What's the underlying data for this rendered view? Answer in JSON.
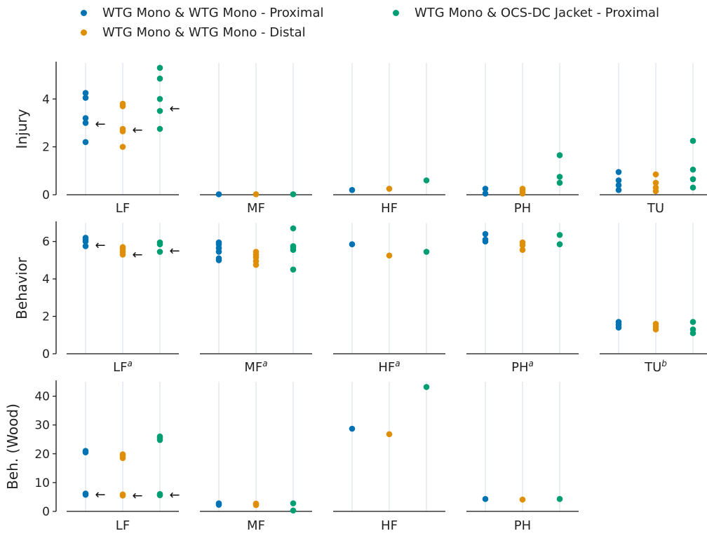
{
  "legend": [
    {
      "label": "WTG Mono & WTG Mono - Proximal",
      "color": "#0173b2"
    },
    {
      "label": "WTG Mono & WTG Mono - Distal",
      "color": "#de8f05"
    },
    {
      "label": "WTG Mono & OCS-DC Jacket - Proximal",
      "color": "#029e73"
    }
  ],
  "chart_data": {
    "type": "scatter",
    "layout": "grid of strip plots, 3 rows x 5 columns",
    "grid": false,
    "legend_position": "top",
    "series_colors": [
      "#0173b2",
      "#de8f05",
      "#029e73"
    ],
    "rows": [
      {
        "ylabel": "Injury",
        "ylim": [
          0,
          5.5
        ],
        "yticks": [
          "0",
          "2",
          "4"
        ],
        "ytick_values": [
          0,
          2,
          4
        ],
        "panels": [
          {
            "label": "LF",
            "sup": "",
            "series": [
              [
                2.2,
                3.0,
                3.2,
                4.05,
                4.25
              ],
              [
                2.0,
                2.65,
                2.75,
                3.7,
                3.8
              ],
              [
                2.75,
                3.5,
                4.0,
                4.85,
                5.3
              ]
            ],
            "arrows": [
              2.95,
              2.7,
              3.6
            ]
          },
          {
            "label": "MF",
            "sup": "",
            "series": [
              [
                0.02
              ],
              [
                0.02
              ],
              [
                0.02
              ]
            ],
            "arrows": []
          },
          {
            "label": "HF",
            "sup": "",
            "series": [
              [
                0.2
              ],
              [
                0.25
              ],
              [
                0.6
              ]
            ],
            "arrows": []
          },
          {
            "label": "PH",
            "sup": "",
            "series": [
              [
                0.05,
                0.25
              ],
              [
                0.05,
                0.15,
                0.25
              ],
              [
                0.5,
                0.75,
                1.65
              ]
            ],
            "arrows": []
          },
          {
            "label": "TU",
            "sup": "",
            "series": [
              [
                0.2,
                0.4,
                0.6,
                0.95
              ],
              [
                0.15,
                0.3,
                0.5,
                0.85
              ],
              [
                0.3,
                0.65,
                1.05,
                2.25
              ]
            ],
            "arrows": []
          }
        ]
      },
      {
        "ylabel": "Behavior",
        "ylim": [
          0,
          7
        ],
        "yticks": [
          "0",
          "2",
          "4",
          "6"
        ],
        "ytick_values": [
          0,
          2,
          4,
          6
        ],
        "panels": [
          {
            "label": "LF",
            "sup": "a",
            "series": [
              [
                5.75,
                6.0,
                6.1,
                6.2
              ],
              [
                5.3,
                5.45,
                5.6,
                5.7
              ],
              [
                5.45,
                5.85,
                5.95
              ]
            ],
            "arrows": [
              5.8,
              5.3,
              5.5
            ]
          },
          {
            "label": "MF",
            "sup": "a",
            "series": [
              [
                5.0,
                5.1,
                5.45,
                5.65,
                5.85,
                5.95
              ],
              [
                4.75,
                4.95,
                5.15,
                5.3,
                5.45
              ],
              [
                4.5,
                5.55,
                5.65,
                5.75,
                6.7
              ]
            ],
            "arrows": []
          },
          {
            "label": "HF",
            "sup": "a",
            "series": [
              [
                5.85
              ],
              [
                5.25
              ],
              [
                5.45
              ]
            ],
            "arrows": []
          },
          {
            "label": "PH",
            "sup": "a",
            "series": [
              [
                6.0,
                6.1,
                6.4
              ],
              [
                5.55,
                5.8,
                5.95
              ],
              [
                5.85,
                6.35
              ]
            ],
            "arrows": []
          },
          {
            "label": "TU",
            "sup": "b",
            "series": [
              [
                1.4,
                1.55,
                1.7
              ],
              [
                1.3,
                1.45,
                1.6
              ],
              [
                1.1,
                1.3,
                1.7
              ]
            ],
            "arrows": []
          }
        ]
      },
      {
        "ylabel": "Beh. (Wood)",
        "ylim": [
          0,
          45
        ],
        "yticks": [
          "0",
          "10",
          "20",
          "30",
          "40"
        ],
        "ytick_values": [
          0,
          10,
          20,
          30,
          40
        ],
        "panels": [
          {
            "label": "LF",
            "sup": "",
            "series": [
              [
                5.8,
                6.2,
                20.5,
                21.0
              ],
              [
                5.5,
                5.9,
                18.5,
                19.3,
                19.8
              ],
              [
                5.6,
                6.0,
                24.8,
                25.5,
                26.0
              ]
            ],
            "arrows": [
              5.8,
              5.5,
              5.7
            ]
          },
          {
            "label": "MF",
            "sup": "",
            "series": [
              [
                2.3,
                2.8
              ],
              [
                2.2,
                2.7
              ],
              [
                0.3,
                2.8
              ]
            ],
            "arrows": []
          },
          {
            "label": "HF",
            "sup": "",
            "series": [
              [
                28.7
              ],
              [
                26.8
              ],
              [
                43.2
              ]
            ],
            "arrows": []
          },
          {
            "label": "PH",
            "sup": "",
            "series": [
              [
                4.3
              ],
              [
                4.1
              ],
              [
                4.3
              ]
            ],
            "arrows": []
          }
        ]
      }
    ]
  }
}
